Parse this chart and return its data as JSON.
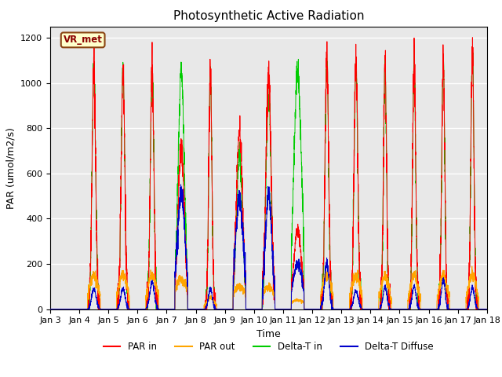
{
  "title": "Photosynthetic Active Radiation",
  "ylabel": "PAR (umol/m2/s)",
  "xlabel": "Time",
  "ylim": [
    0,
    1250
  ],
  "yticks": [
    0,
    200,
    400,
    600,
    800,
    1000,
    1200
  ],
  "background_color": "#e8e8e8",
  "legend_label": "VR_met",
  "colors": {
    "PAR in": "#ff0000",
    "PAR out": "#ffa500",
    "Delta-T in": "#00cc00",
    "Delta-T Diffuse": "#0000cc"
  },
  "legend_entries": [
    "PAR in",
    "PAR out",
    "Delta-T in",
    "Delta-T Diffuse"
  ],
  "n_days": 15,
  "pts_per_day": 288,
  "title_fontsize": 11,
  "axis_fontsize": 9,
  "tick_fontsize": 8,
  "par_in_peaks": [
    0,
    1050,
    1050,
    1040,
    730,
    1050,
    780,
    1040,
    350,
    1100,
    1100,
    1100,
    1100,
    1100,
    1130
  ],
  "par_out_peaks": [
    0,
    150,
    150,
    150,
    130,
    50,
    100,
    100,
    40,
    150,
    150,
    150,
    150,
    150,
    155
  ],
  "delta_t_in_peaks": [
    0,
    1060,
    1060,
    1050,
    1050,
    1050,
    680,
    960,
    1050,
    1100,
    1080,
    1080,
    1080,
    1100,
    1140
  ],
  "delta_t_diff_peaks": [
    0,
    90,
    90,
    120,
    510,
    90,
    490,
    510,
    200,
    200,
    80,
    100,
    100,
    130,
    95
  ],
  "day_widths": [
    0.05,
    0.07,
    0.07,
    0.07,
    0.12,
    0.06,
    0.12,
    0.1,
    0.15,
    0.07,
    0.07,
    0.06,
    0.06,
    0.06,
    0.06
  ]
}
